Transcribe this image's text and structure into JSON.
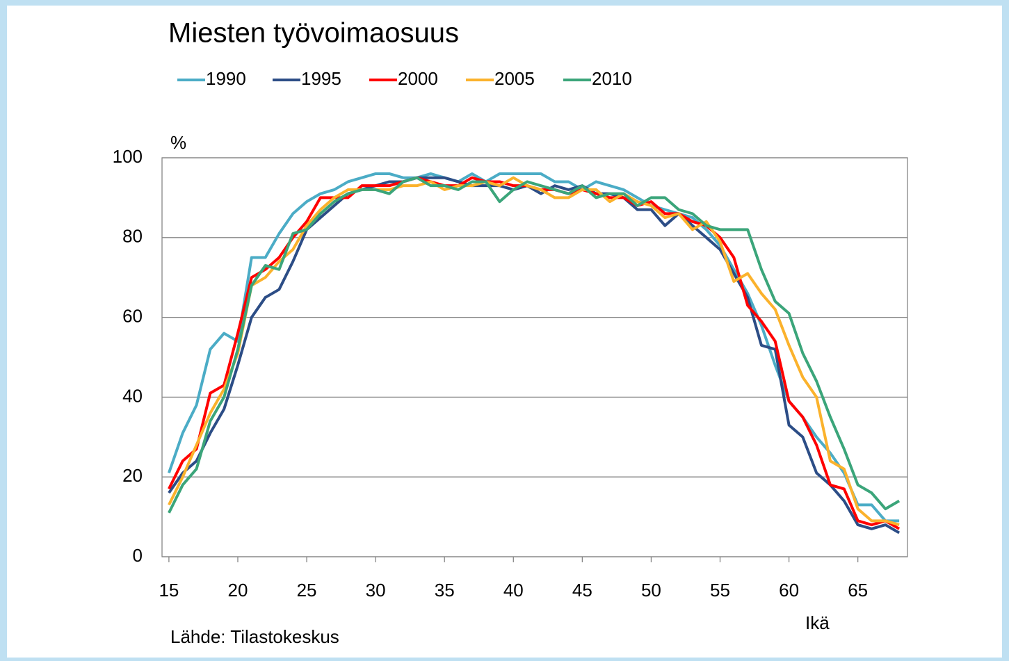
{
  "chart_data": {
    "type": "line",
    "title": "Miesten työvoimaosuus",
    "ylabel": "%",
    "xlabel": "Ikä",
    "source": "Lähde: Tilastokeskus",
    "legend": "top",
    "grid": true,
    "x": [
      15,
      16,
      17,
      18,
      19,
      20,
      21,
      22,
      23,
      24,
      25,
      26,
      27,
      28,
      29,
      30,
      31,
      32,
      33,
      34,
      35,
      36,
      37,
      38,
      39,
      40,
      41,
      42,
      43,
      44,
      45,
      46,
      47,
      48,
      49,
      50,
      51,
      52,
      53,
      54,
      55,
      56,
      57,
      58,
      59,
      60,
      61,
      62,
      63,
      64,
      65,
      66,
      67,
      68
    ],
    "xlim": [
      14.5,
      68.6
    ],
    "xticks": [
      15,
      20,
      25,
      30,
      35,
      40,
      45,
      50,
      55,
      60,
      65
    ],
    "ylim": [
      0,
      100
    ],
    "yticks": [
      0,
      20,
      40,
      60,
      80,
      100
    ],
    "series": [
      {
        "name": "1990",
        "color": "#4bacc6",
        "values": [
          21,
          31,
          38,
          52,
          56,
          54,
          75,
          75,
          81,
          86,
          89,
          91,
          92,
          94,
          95,
          96,
          96,
          95,
          95,
          96,
          95,
          94,
          96,
          94,
          96,
          96,
          96,
          96,
          94,
          94,
          92,
          94,
          93,
          92,
          90,
          88,
          87,
          86,
          85,
          82,
          78,
          72,
          66,
          58,
          48,
          39,
          35,
          30,
          26,
          21,
          13,
          13,
          9,
          9
        ]
      },
      {
        "name": "1995",
        "color": "#2c4d86",
        "values": [
          16,
          21,
          24,
          31,
          37,
          48,
          60,
          65,
          67,
          74,
          82,
          85,
          88,
          91,
          92,
          93,
          94,
          94,
          95,
          95,
          95,
          94,
          93,
          93,
          93,
          92,
          93,
          91,
          93,
          92,
          93,
          91,
          91,
          90,
          87,
          87,
          83,
          86,
          83,
          80,
          77,
          71,
          65,
          53,
          52,
          33,
          30,
          21,
          18,
          14,
          8,
          7,
          8,
          6
        ]
      },
      {
        "name": "2000",
        "color": "#ff0000",
        "values": [
          17,
          24,
          27,
          41,
          43,
          56,
          70,
          72,
          75,
          80,
          84,
          90,
          90,
          90,
          93,
          93,
          93,
          94,
          95,
          94,
          93,
          93,
          95,
          94,
          94,
          93,
          93,
          92,
          92,
          91,
          92,
          91,
          90,
          90,
          88,
          89,
          86,
          86,
          84,
          83,
          80,
          75,
          63,
          59,
          54,
          39,
          35,
          28,
          18,
          17,
          9,
          8,
          9,
          7
        ]
      },
      {
        "name": "2005",
        "color": "#fbb22c",
        "values": [
          13,
          20,
          28,
          36,
          42,
          51,
          68,
          70,
          74,
          77,
          83,
          87,
          90,
          92,
          92,
          92,
          92,
          93,
          93,
          94,
          92,
          93,
          93,
          94,
          93,
          95,
          93,
          92,
          90,
          90,
          92,
          92,
          89,
          91,
          89,
          88,
          85,
          86,
          82,
          84,
          79,
          69,
          71,
          66,
          62,
          53,
          45,
          40,
          24,
          22,
          12,
          9,
          9,
          8
        ]
      },
      {
        "name": "2010",
        "color": "#3ba57a",
        "values": [
          11,
          18,
          22,
          34,
          40,
          52,
          68,
          73,
          72,
          81,
          82,
          86,
          89,
          91,
          92,
          92,
          91,
          94,
          95,
          93,
          93,
          92,
          94,
          94,
          89,
          92,
          94,
          93,
          92,
          91,
          93,
          90,
          91,
          91,
          88,
          90,
          90,
          87,
          86,
          83,
          82,
          82,
          82,
          72,
          64,
          61,
          51,
          44,
          35,
          27,
          18,
          16,
          12,
          14
        ]
      }
    ]
  }
}
